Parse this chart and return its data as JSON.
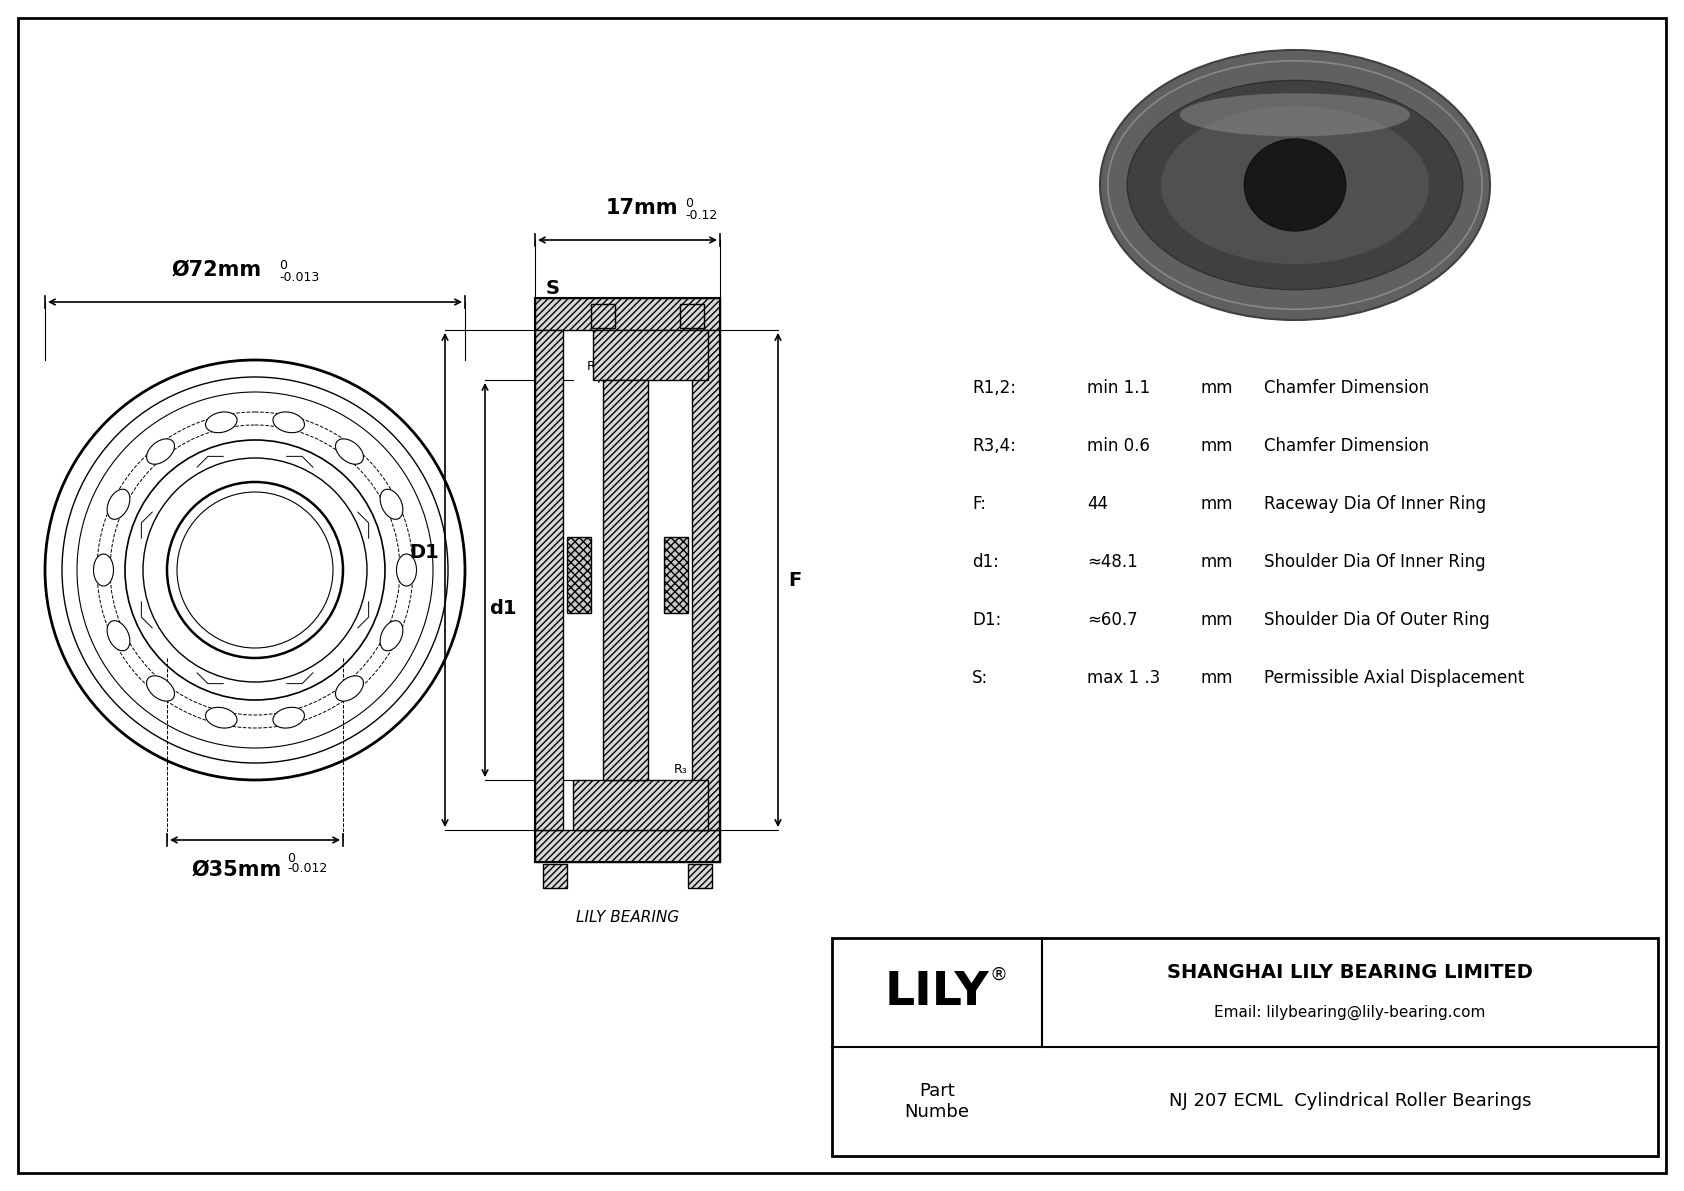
{
  "bg_color": "#ffffff",
  "outer_dia_label": "Ø72mm",
  "outer_dia_tol_top": "0",
  "outer_dia_tol_bot": "-0.013",
  "inner_dia_label": "Ø35mm",
  "inner_dia_tol_top": "0",
  "inner_dia_tol_bot": "-0.012",
  "width_label": "17mm",
  "width_tol_top": "0",
  "width_tol_bot": "-0.12",
  "S_label": "S",
  "D1_label": "D1",
  "d1_label": "d1",
  "F_label": "F",
  "specs": [
    {
      "param": "R1,2:",
      "value": "min 1.1",
      "unit": "mm",
      "desc": "Chamfer Dimension"
    },
    {
      "param": "R3,4:",
      "value": "min 0.6",
      "unit": "mm",
      "desc": "Chamfer Dimension"
    },
    {
      "param": "F:",
      "value": "44",
      "unit": "mm",
      "desc": "Raceway Dia Of Inner Ring"
    },
    {
      "param": "d1:",
      "value": "≈48.1",
      "unit": "mm",
      "desc": "Shoulder Dia Of Inner Ring"
    },
    {
      "param": "D1:",
      "value": "≈60.7",
      "unit": "mm",
      "desc": "Shoulder Dia Of Outer Ring"
    },
    {
      "param": "S:",
      "value": "max 1 .3",
      "unit": "mm",
      "desc": "Permissible Axial Displacement"
    }
  ],
  "company_name": "SHANGHAI LILY BEARING LIMITED",
  "company_email": "Email: lilybearing@lily-bearing.com",
  "part_label": "Part\nNumbe",
  "part_number": "NJ 207 ECML  Cylindrical Roller Bearings",
  "lily_text": "LILY",
  "lily_registered": "®",
  "watermark": "LILY BEARING"
}
